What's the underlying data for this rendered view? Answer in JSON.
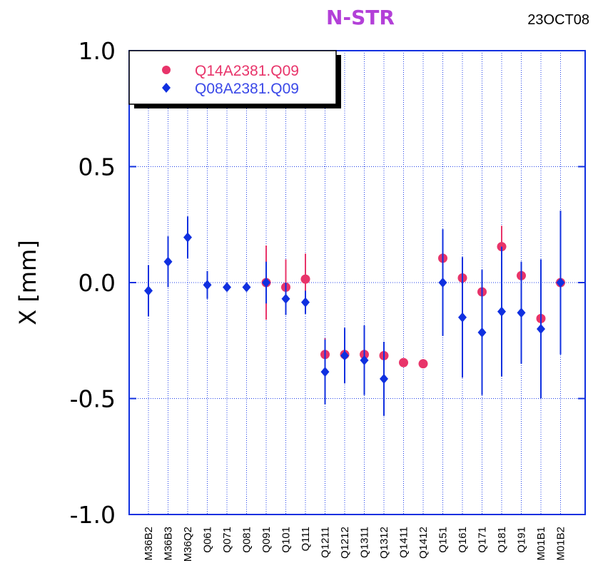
{
  "chart_data": {
    "type": "scatter",
    "title": "N-STR",
    "date": "23OCT08",
    "ylabel": "X [mm]",
    "xlabel": "",
    "ylim": [
      -1.0,
      1.0
    ],
    "yticks": [
      1.0,
      0.5,
      0.0,
      -0.5,
      -1.0
    ],
    "ytick_labels": [
      "1.0",
      "0.5",
      "0.0",
      "-0.5",
      "-1.0"
    ],
    "grid": true,
    "legend_position": "top-left",
    "categories": [
      "M36B2",
      "M36B3",
      "M36Q2",
      "Q061",
      "Q071",
      "Q081",
      "Q091",
      "Q101",
      "Q111",
      "Q1211",
      "Q1212",
      "Q1311",
      "Q1312",
      "Q1411",
      "Q1412",
      "Q151",
      "Q161",
      "Q171",
      "Q181",
      "Q191",
      "M01B1",
      "M01B2"
    ],
    "series": [
      {
        "name": "Q14A2381.Q09",
        "color": "#e8346a",
        "marker": "circle",
        "values": [
          null,
          null,
          null,
          null,
          null,
          null,
          0.0,
          -0.02,
          0.015,
          -0.31,
          -0.31,
          -0.31,
          -0.315,
          -0.345,
          -0.35,
          0.105,
          0.02,
          -0.04,
          0.155,
          0.03,
          -0.155,
          0.0
        ],
        "errors": [
          null,
          null,
          null,
          null,
          null,
          null,
          0.16,
          0.12,
          0.11,
          0.07,
          0.02,
          0.02,
          0.02,
          0.01,
          0.01,
          0.01,
          0.01,
          0.01,
          0.09,
          0.01,
          0.01,
          0.01
        ]
      },
      {
        "name": "Q08A2381.Q09",
        "color": "#1030e0",
        "marker": "diamond",
        "values": [
          -0.035,
          0.09,
          0.195,
          -0.01,
          -0.02,
          -0.02,
          0.0,
          -0.07,
          -0.085,
          -0.385,
          -0.315,
          -0.335,
          -0.415,
          null,
          null,
          0.0,
          -0.15,
          -0.215,
          -0.125,
          -0.13,
          -0.2,
          0.0
        ],
        "errors": [
          0.11,
          0.11,
          0.09,
          0.06,
          0.0,
          0.0,
          0.09,
          0.07,
          0.05,
          0.14,
          0.12,
          0.15,
          0.16,
          null,
          null,
          0.23,
          0.26,
          0.27,
          0.28,
          0.22,
          0.3,
          0.31
        ]
      }
    ]
  }
}
